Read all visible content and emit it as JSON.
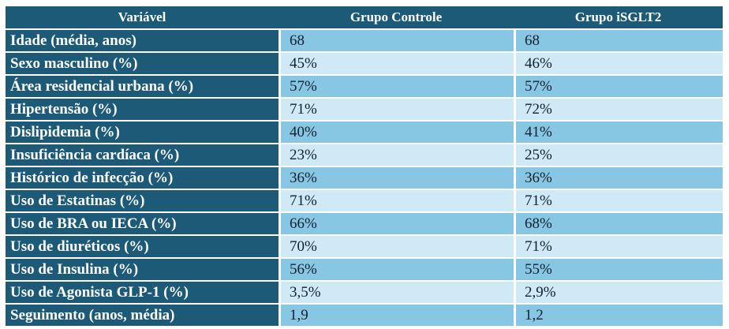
{
  "chart_data": {
    "type": "table",
    "title": "",
    "columns": [
      "Variável",
      "Grupo Controle",
      "Grupo iSGLT2"
    ],
    "rows": [
      {
        "variavel": "Idade (média, anos)",
        "grupo_controle": "68",
        "grupo_isglt2": "68"
      },
      {
        "variavel": "Sexo masculino (%)",
        "grupo_controle": "45%",
        "grupo_isglt2": "46%"
      },
      {
        "variavel": "Área residencial urbana (%)",
        "grupo_controle": "57%",
        "grupo_isglt2": "57%"
      },
      {
        "variavel": "Hipertensão (%)",
        "grupo_controle": "71%",
        "grupo_isglt2": "72%"
      },
      {
        "variavel": "Dislipidemia (%)",
        "grupo_controle": "40%",
        "grupo_isglt2": "41%"
      },
      {
        "variavel": "Insuficiência cardíaca (%)",
        "grupo_controle": "23%",
        "grupo_isglt2": "25%"
      },
      {
        "variavel": "Histórico de infecção (%)",
        "grupo_controle": "36%",
        "grupo_isglt2": "36%"
      },
      {
        "variavel": "Uso de Estatinas (%)",
        "grupo_controle": "71%",
        "grupo_isglt2": "71%"
      },
      {
        "variavel": "Uso de BRA ou IECA (%)",
        "grupo_controle": "66%",
        "grupo_isglt2": "68%"
      },
      {
        "variavel": "Uso de diuréticos (%)",
        "grupo_controle": "70%",
        "grupo_isglt2": "71%"
      },
      {
        "variavel": "Uso de Insulina (%)",
        "grupo_controle": "56%",
        "grupo_isglt2": "55%"
      },
      {
        "variavel": "Uso de Agonista GLP-1 (%)",
        "grupo_controle": "3,5%",
        "grupo_isglt2": "2,9%"
      },
      {
        "variavel": "Seguimento (anos, média)",
        "grupo_controle": "1,9",
        "grupo_isglt2": "1,2"
      }
    ]
  },
  "colors": {
    "header_bg": "#1d5a78",
    "label_bg": "#1d5a78",
    "row_a_bg": "#88c7e4",
    "row_b_bg": "#cfe9f6",
    "header_text": "#ffffff",
    "label_text": "#ffffff",
    "value_text": "#13202e",
    "page_bg": "#ffffff",
    "separator": "#ffffff"
  }
}
